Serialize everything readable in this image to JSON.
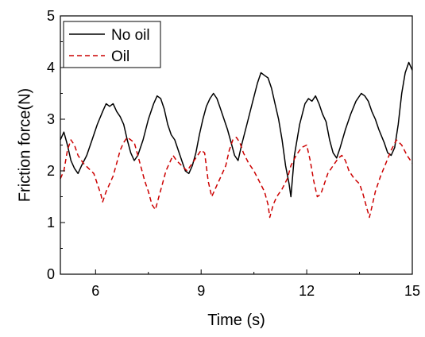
{
  "chart_data": {
    "type": "line",
    "xlabel": "Time (s)",
    "ylabel": "Friction force(N)",
    "xlim": [
      5,
      15
    ],
    "ylim": [
      0,
      5
    ],
    "x_ticks": [
      6,
      9,
      12,
      15
    ],
    "y_ticks": [
      0,
      1,
      2,
      3,
      4,
      5
    ],
    "legend_position": "top-left",
    "grid": false,
    "series": [
      {
        "name": "No oil",
        "color": "#000000",
        "dash": "solid",
        "points": [
          [
            5.0,
            2.6
          ],
          [
            5.1,
            2.75
          ],
          [
            5.2,
            2.5
          ],
          [
            5.3,
            2.2
          ],
          [
            5.4,
            2.05
          ],
          [
            5.5,
            1.95
          ],
          [
            5.6,
            2.1
          ],
          [
            5.75,
            2.3
          ],
          [
            5.9,
            2.6
          ],
          [
            6.05,
            2.9
          ],
          [
            6.2,
            3.15
          ],
          [
            6.3,
            3.3
          ],
          [
            6.4,
            3.25
          ],
          [
            6.5,
            3.3
          ],
          [
            6.6,
            3.15
          ],
          [
            6.7,
            3.05
          ],
          [
            6.8,
            2.9
          ],
          [
            6.9,
            2.6
          ],
          [
            7.0,
            2.35
          ],
          [
            7.1,
            2.2
          ],
          [
            7.2,
            2.3
          ],
          [
            7.35,
            2.6
          ],
          [
            7.5,
            3.0
          ],
          [
            7.65,
            3.3
          ],
          [
            7.75,
            3.45
          ],
          [
            7.85,
            3.4
          ],
          [
            7.95,
            3.2
          ],
          [
            8.05,
            2.9
          ],
          [
            8.15,
            2.7
          ],
          [
            8.25,
            2.6
          ],
          [
            8.35,
            2.4
          ],
          [
            8.45,
            2.2
          ],
          [
            8.55,
            2.0
          ],
          [
            8.65,
            1.95
          ],
          [
            8.75,
            2.1
          ],
          [
            8.85,
            2.35
          ],
          [
            8.95,
            2.7
          ],
          [
            9.05,
            3.0
          ],
          [
            9.15,
            3.25
          ],
          [
            9.25,
            3.4
          ],
          [
            9.35,
            3.5
          ],
          [
            9.45,
            3.4
          ],
          [
            9.55,
            3.2
          ],
          [
            9.65,
            3.0
          ],
          [
            9.75,
            2.8
          ],
          [
            9.85,
            2.55
          ],
          [
            9.95,
            2.3
          ],
          [
            10.05,
            2.2
          ],
          [
            10.15,
            2.5
          ],
          [
            10.3,
            2.9
          ],
          [
            10.45,
            3.3
          ],
          [
            10.6,
            3.7
          ],
          [
            10.7,
            3.9
          ],
          [
            10.8,
            3.85
          ],
          [
            10.9,
            3.8
          ],
          [
            11.0,
            3.6
          ],
          [
            11.1,
            3.3
          ],
          [
            11.2,
            3.0
          ],
          [
            11.3,
            2.6
          ],
          [
            11.4,
            2.1
          ],
          [
            11.5,
            1.75
          ],
          [
            11.55,
            1.5
          ],
          [
            11.65,
            2.3
          ],
          [
            11.8,
            2.9
          ],
          [
            11.95,
            3.3
          ],
          [
            12.05,
            3.4
          ],
          [
            12.15,
            3.35
          ],
          [
            12.25,
            3.45
          ],
          [
            12.35,
            3.3
          ],
          [
            12.45,
            3.1
          ],
          [
            12.55,
            2.95
          ],
          [
            12.65,
            2.6
          ],
          [
            12.75,
            2.35
          ],
          [
            12.85,
            2.25
          ],
          [
            12.95,
            2.45
          ],
          [
            13.1,
            2.8
          ],
          [
            13.25,
            3.1
          ],
          [
            13.4,
            3.35
          ],
          [
            13.55,
            3.5
          ],
          [
            13.65,
            3.45
          ],
          [
            13.75,
            3.35
          ],
          [
            13.85,
            3.15
          ],
          [
            13.95,
            3.0
          ],
          [
            14.05,
            2.8
          ],
          [
            14.2,
            2.55
          ],
          [
            14.3,
            2.35
          ],
          [
            14.4,
            2.3
          ],
          [
            14.5,
            2.45
          ],
          [
            14.6,
            2.9
          ],
          [
            14.7,
            3.5
          ],
          [
            14.8,
            3.9
          ],
          [
            14.9,
            4.1
          ],
          [
            15.0,
            3.95
          ]
        ]
      },
      {
        "name": "Oil",
        "color": "#cc0000",
        "dash": "dashed",
        "points": [
          [
            5.0,
            1.85
          ],
          [
            5.1,
            2.0
          ],
          [
            5.2,
            2.4
          ],
          [
            5.3,
            2.6
          ],
          [
            5.4,
            2.5
          ],
          [
            5.5,
            2.3
          ],
          [
            5.65,
            2.15
          ],
          [
            5.8,
            2.05
          ],
          [
            5.95,
            1.95
          ],
          [
            6.05,
            1.75
          ],
          [
            6.15,
            1.55
          ],
          [
            6.2,
            1.4
          ],
          [
            6.3,
            1.6
          ],
          [
            6.4,
            1.75
          ],
          [
            6.5,
            1.9
          ],
          [
            6.6,
            2.15
          ],
          [
            6.7,
            2.4
          ],
          [
            6.8,
            2.55
          ],
          [
            6.9,
            2.65
          ],
          [
            7.0,
            2.6
          ],
          [
            7.1,
            2.55
          ],
          [
            7.2,
            2.3
          ],
          [
            7.3,
            2.05
          ],
          [
            7.4,
            1.8
          ],
          [
            7.5,
            1.6
          ],
          [
            7.6,
            1.35
          ],
          [
            7.7,
            1.25
          ],
          [
            7.8,
            1.5
          ],
          [
            7.9,
            1.75
          ],
          [
            8.0,
            2.0
          ],
          [
            8.1,
            2.15
          ],
          [
            8.2,
            2.3
          ],
          [
            8.3,
            2.2
          ],
          [
            8.45,
            2.1
          ],
          [
            8.6,
            2.0
          ],
          [
            8.75,
            2.15
          ],
          [
            8.9,
            2.3
          ],
          [
            9.0,
            2.4
          ],
          [
            9.1,
            2.35
          ],
          [
            9.2,
            1.8
          ],
          [
            9.3,
            1.5
          ],
          [
            9.4,
            1.65
          ],
          [
            9.5,
            1.8
          ],
          [
            9.6,
            1.95
          ],
          [
            9.7,
            2.1
          ],
          [
            9.8,
            2.4
          ],
          [
            9.9,
            2.6
          ],
          [
            10.0,
            2.65
          ],
          [
            10.1,
            2.55
          ],
          [
            10.2,
            2.35
          ],
          [
            10.35,
            2.15
          ],
          [
            10.5,
            2.0
          ],
          [
            10.65,
            1.8
          ],
          [
            10.8,
            1.6
          ],
          [
            10.9,
            1.35
          ],
          [
            10.95,
            1.1
          ],
          [
            11.05,
            1.35
          ],
          [
            11.15,
            1.5
          ],
          [
            11.3,
            1.65
          ],
          [
            11.45,
            1.85
          ],
          [
            11.55,
            2.1
          ],
          [
            11.7,
            2.3
          ],
          [
            11.85,
            2.45
          ],
          [
            12.0,
            2.5
          ],
          [
            12.1,
            2.2
          ],
          [
            12.2,
            1.8
          ],
          [
            12.3,
            1.5
          ],
          [
            12.4,
            1.55
          ],
          [
            12.5,
            1.75
          ],
          [
            12.6,
            1.95
          ],
          [
            12.75,
            2.1
          ],
          [
            12.9,
            2.25
          ],
          [
            13.0,
            2.3
          ],
          [
            13.1,
            2.2
          ],
          [
            13.2,
            2.0
          ],
          [
            13.35,
            1.85
          ],
          [
            13.5,
            1.75
          ],
          [
            13.6,
            1.55
          ],
          [
            13.7,
            1.3
          ],
          [
            13.78,
            1.1
          ],
          [
            13.85,
            1.3
          ],
          [
            13.95,
            1.6
          ],
          [
            14.1,
            1.9
          ],
          [
            14.25,
            2.15
          ],
          [
            14.4,
            2.4
          ],
          [
            14.55,
            2.6
          ],
          [
            14.7,
            2.5
          ],
          [
            14.85,
            2.3
          ],
          [
            15.0,
            2.15
          ]
        ]
      }
    ]
  }
}
